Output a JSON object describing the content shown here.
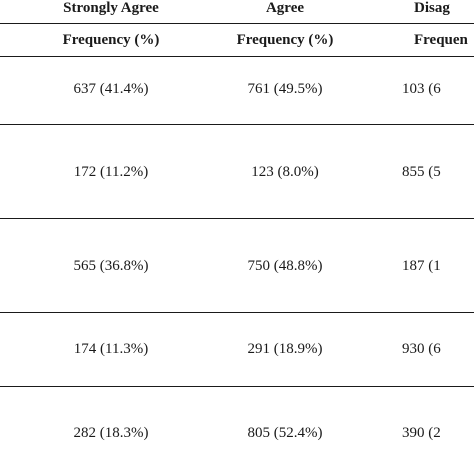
{
  "table": {
    "group_headers": [
      "Strongly Agree",
      "Agree",
      "Disag"
    ],
    "sub_headers": [
      "Frequency (%)",
      "Frequency (%)",
      "Frequen"
    ],
    "rows": [
      [
        "637 (41.4%)",
        "761 (49.5%)",
        "103 (6"
      ],
      [
        "172 (11.2%)",
        "123 (8.0%)",
        "855 (5"
      ],
      [
        "565 (36.8%)",
        "750 (48.8%)",
        "187 (1"
      ],
      [
        "174 (11.3%)",
        "291 (18.9%)",
        "930 (6"
      ],
      [
        "282 (18.3%)",
        "805 (52.4%)",
        "390 (2"
      ]
    ]
  }
}
